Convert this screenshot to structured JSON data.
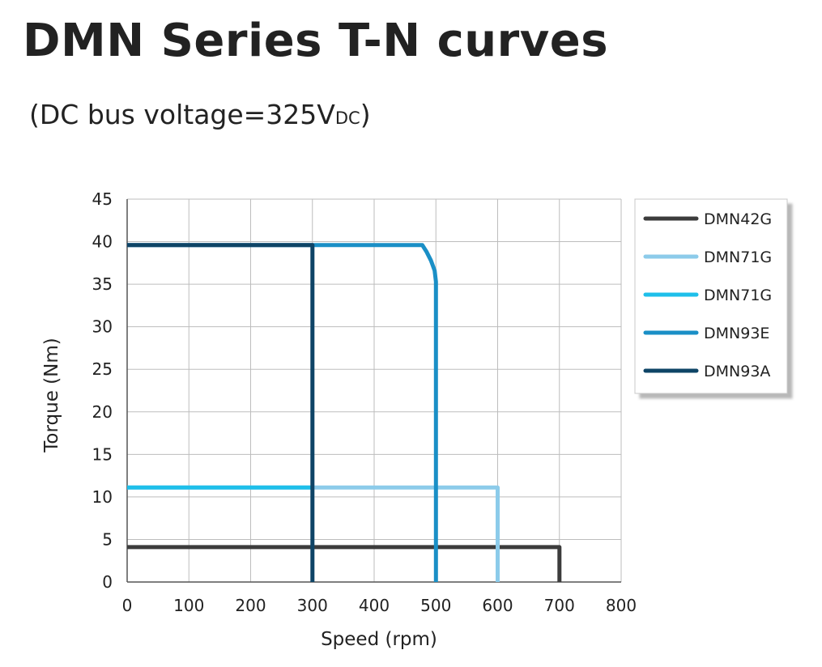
{
  "title": "DMN Series T-N curves",
  "subtitle": {
    "prefix": "(DC bus voltage=325V",
    "subscript": "DC",
    "suffix": ")"
  },
  "chart_data": {
    "type": "line",
    "title": "DMN Series T-N curves",
    "subtitle": "(DC bus voltage=325VDC)",
    "xlabel": "Speed (rpm)",
    "ylabel": "Torque (Nm)",
    "xlim": [
      0,
      800
    ],
    "ylim": [
      0,
      45
    ],
    "xticks": [
      0,
      100,
      200,
      300,
      400,
      500,
      600,
      700,
      800
    ],
    "yticks": [
      0,
      5,
      10,
      15,
      20,
      25,
      30,
      35,
      40,
      45
    ],
    "grid": true,
    "legend_position": "right",
    "series": [
      {
        "name": "DMN42G",
        "color": "#3c3c3c",
        "points": [
          [
            0,
            4.1
          ],
          [
            700,
            4.1
          ],
          [
            700,
            0
          ]
        ]
      },
      {
        "name": "DMN71G",
        "color": "#8ccbea",
        "points": [
          [
            0,
            11.1
          ],
          [
            600,
            11.1
          ],
          [
            600,
            0
          ]
        ]
      },
      {
        "name": "DMN71G",
        "color": "#1ebfea",
        "points": [
          [
            0,
            11.1
          ],
          [
            300,
            11.1
          ]
        ]
      },
      {
        "name": "DMN93E",
        "color": "#1a8fc6",
        "points": [
          [
            0,
            39.6
          ],
          [
            478,
            39.6
          ],
          [
            485,
            38.8
          ],
          [
            492,
            37.8
          ],
          [
            498,
            36.6
          ],
          [
            500,
            35.3
          ],
          [
            500,
            0
          ]
        ]
      },
      {
        "name": "DMN93A",
        "color": "#0e4466",
        "points": [
          [
            0,
            39.6
          ],
          [
            300,
            39.6
          ],
          [
            300,
            0
          ]
        ]
      }
    ]
  }
}
